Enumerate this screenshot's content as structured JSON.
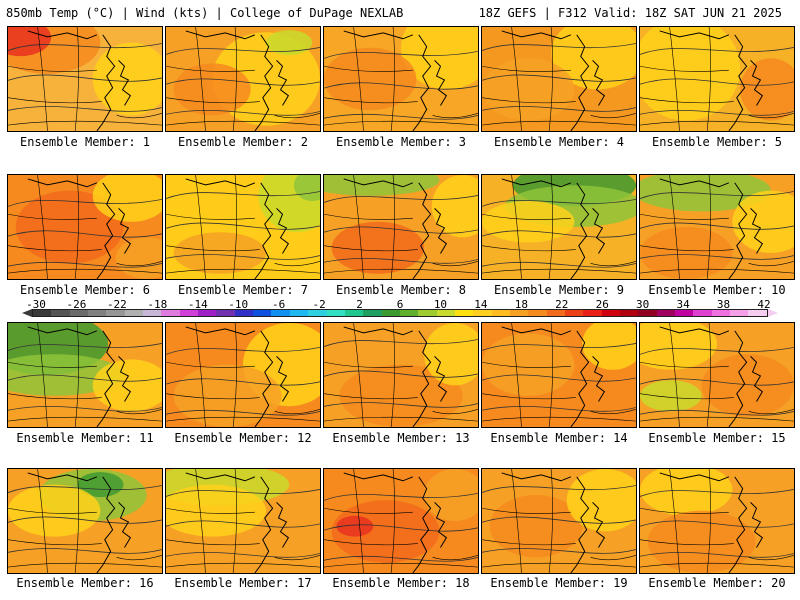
{
  "header": {
    "left": "850mb Temp (°C) | Wind (kts) | College of DuPage NEXLAB",
    "right": "18Z GEFS | F312 Valid: 18Z SAT JUN 21 2025"
  },
  "panels": [
    {
      "label": "Ensemble Member: 1",
      "base": "#f7b23b",
      "blobs": [
        [
          "#f68a1f",
          0.25,
          0.15,
          0.35,
          0.3
        ],
        [
          "#e8321e",
          0.08,
          0.1,
          0.2,
          0.18
        ],
        [
          "#ffd11a",
          0.8,
          0.5,
          0.25,
          0.35
        ]
      ]
    },
    {
      "label": "Ensemble Member: 2",
      "base": "#f6a126",
      "blobs": [
        [
          "#ffd11a",
          0.65,
          0.5,
          0.35,
          0.45
        ],
        [
          "#c9d92c",
          0.8,
          0.15,
          0.15,
          0.12
        ],
        [
          "#f68a1f",
          0.3,
          0.6,
          0.25,
          0.25
        ]
      ]
    },
    {
      "label": "Ensemble Member: 3",
      "base": "#f7a625",
      "blobs": [
        [
          "#ffd11a",
          0.8,
          0.2,
          0.3,
          0.4
        ],
        [
          "#f68a1f",
          0.3,
          0.5,
          0.3,
          0.3
        ]
      ]
    },
    {
      "label": "Ensemble Member: 4",
      "base": "#f59820",
      "blobs": [
        [
          "#ffd11a",
          0.75,
          0.25,
          0.3,
          0.35
        ],
        [
          "#f6a126",
          0.3,
          0.6,
          0.3,
          0.3
        ]
      ]
    },
    {
      "label": "Ensemble Member: 5",
      "base": "#f6b126",
      "blobs": [
        [
          "#ffd11a",
          0.3,
          0.4,
          0.35,
          0.5
        ],
        [
          "#f68a1f",
          0.85,
          0.6,
          0.2,
          0.3
        ]
      ]
    },
    {
      "label": "Ensemble Member: 6",
      "base": "#f68a1f",
      "blobs": [
        [
          "#f26a1b",
          0.4,
          0.5,
          0.35,
          0.35
        ],
        [
          "#ffd11a",
          0.8,
          0.2,
          0.25,
          0.25
        ],
        [
          "#f6a126",
          0.9,
          0.8,
          0.2,
          0.2
        ]
      ]
    },
    {
      "label": "Ensemble Member: 7",
      "base": "#ffcc1a",
      "blobs": [
        [
          "#c9d92c",
          0.85,
          0.2,
          0.25,
          0.35
        ],
        [
          "#8fc43a",
          0.95,
          0.1,
          0.12,
          0.15
        ],
        [
          "#f6a126",
          0.35,
          0.75,
          0.3,
          0.2
        ]
      ]
    },
    {
      "label": "Ensemble Member: 8",
      "base": "#f6a126",
      "blobs": [
        [
          "#8fc43a",
          0.3,
          0.05,
          0.45,
          0.15
        ],
        [
          "#f26a1b",
          0.35,
          0.7,
          0.3,
          0.25
        ],
        [
          "#ffd11a",
          0.9,
          0.3,
          0.2,
          0.3
        ]
      ]
    },
    {
      "label": "Ensemble Member: 9",
      "base": "#f6b126",
      "blobs": [
        [
          "#3e9a30",
          0.6,
          0.1,
          0.4,
          0.2
        ],
        [
          "#8fc43a",
          0.6,
          0.3,
          0.45,
          0.2
        ],
        [
          "#ffd11a",
          0.3,
          0.45,
          0.3,
          0.2
        ]
      ]
    },
    {
      "label": "Ensemble Member: 10",
      "base": "#f6a126",
      "blobs": [
        [
          "#8fc43a",
          0.4,
          0.15,
          0.45,
          0.2
        ],
        [
          "#ffd11a",
          0.85,
          0.45,
          0.25,
          0.3
        ],
        [
          "#f68a1f",
          0.3,
          0.75,
          0.3,
          0.25
        ]
      ]
    },
    {
      "label": "Ensemble Member: 11",
      "base": "#f6a126",
      "blobs": [
        [
          "#3e9a30",
          0.25,
          0.2,
          0.4,
          0.3
        ],
        [
          "#8fc43a",
          0.3,
          0.5,
          0.45,
          0.2
        ],
        [
          "#ffd11a",
          0.8,
          0.6,
          0.25,
          0.25
        ]
      ]
    },
    {
      "label": "Ensemble Member: 12",
      "base": "#f68a1f",
      "blobs": [
        [
          "#ffd11a",
          0.8,
          0.4,
          0.3,
          0.4
        ],
        [
          "#f6a126",
          0.4,
          0.7,
          0.35,
          0.3
        ]
      ]
    },
    {
      "label": "Ensemble Member: 13",
      "base": "#f6a126",
      "blobs": [
        [
          "#f68a1f",
          0.5,
          0.7,
          0.4,
          0.3
        ],
        [
          "#ffd11a",
          0.85,
          0.3,
          0.2,
          0.3
        ]
      ]
    },
    {
      "label": "Ensemble Member: 14",
      "base": "#f68a1f",
      "blobs": [
        [
          "#f6a126",
          0.3,
          0.4,
          0.3,
          0.3
        ],
        [
          "#ffd11a",
          0.85,
          0.2,
          0.2,
          0.25
        ]
      ]
    },
    {
      "label": "Ensemble Member: 15",
      "base": "#f6a126",
      "blobs": [
        [
          "#ffd11a",
          0.2,
          0.2,
          0.3,
          0.25
        ],
        [
          "#c9d92c",
          0.2,
          0.7,
          0.2,
          0.15
        ],
        [
          "#f68a1f",
          0.7,
          0.6,
          0.3,
          0.3
        ]
      ]
    },
    {
      "label": "Ensemble Member: 16",
      "base": "#f6a126",
      "blobs": [
        [
          "#8fc43a",
          0.55,
          0.25,
          0.35,
          0.25
        ],
        [
          "#3e9a30",
          0.6,
          0.15,
          0.15,
          0.12
        ],
        [
          "#ffd11a",
          0.3,
          0.4,
          0.3,
          0.25
        ]
      ]
    },
    {
      "label": "Ensemble Member: 17",
      "base": "#f6a126",
      "blobs": [
        [
          "#c9d92c",
          0.35,
          0.15,
          0.45,
          0.2
        ],
        [
          "#ffd11a",
          0.3,
          0.4,
          0.35,
          0.25
        ]
      ]
    },
    {
      "label": "Ensemble Member: 18",
      "base": "#f68a1f",
      "blobs": [
        [
          "#f26a1b",
          0.4,
          0.6,
          0.35,
          0.3
        ],
        [
          "#e8321e",
          0.2,
          0.55,
          0.12,
          0.1
        ],
        [
          "#f6a126",
          0.85,
          0.25,
          0.2,
          0.25
        ]
      ]
    },
    {
      "label": "Ensemble Member: 19",
      "base": "#f6a126",
      "blobs": [
        [
          "#f68a1f",
          0.35,
          0.55,
          0.3,
          0.3
        ],
        [
          "#ffd11a",
          0.8,
          0.3,
          0.25,
          0.3
        ]
      ]
    },
    {
      "label": "Ensemble Member: 20",
      "base": "#f6a126",
      "blobs": [
        [
          "#ffd11a",
          0.3,
          0.2,
          0.3,
          0.25
        ],
        [
          "#f68a1f",
          0.4,
          0.7,
          0.35,
          0.3
        ]
      ]
    }
  ],
  "colorbar": {
    "ticks": [
      "-30",
      "-26",
      "-22",
      "-18",
      "-14",
      "-10",
      "-6",
      "-2",
      "2",
      "6",
      "10",
      "14",
      "18",
      "22",
      "26",
      "30",
      "34",
      "38",
      "42"
    ],
    "colors": [
      "#3a3a3a",
      "#555555",
      "#6b6b6b",
      "#808080",
      "#969696",
      "#b0b0b0",
      "#c9b7d8",
      "#e07be0",
      "#d040d8",
      "#a020c8",
      "#7030b0",
      "#3030c8",
      "#1050e0",
      "#1090f0",
      "#20b8f0",
      "#30d0e0",
      "#30e0c0",
      "#20c890",
      "#20a060",
      "#3a9a30",
      "#60b030",
      "#9ccc30",
      "#c8dc30",
      "#ffe010",
      "#ffd020",
      "#ffbc20",
      "#f6a126",
      "#f68a1f",
      "#f26a1b",
      "#ec4018",
      "#e82018",
      "#d00010",
      "#b00010",
      "#900020",
      "#a00060",
      "#c000a0",
      "#e040d0",
      "#f070e0",
      "#f4a0e8",
      "#f4cdf0"
    ]
  }
}
